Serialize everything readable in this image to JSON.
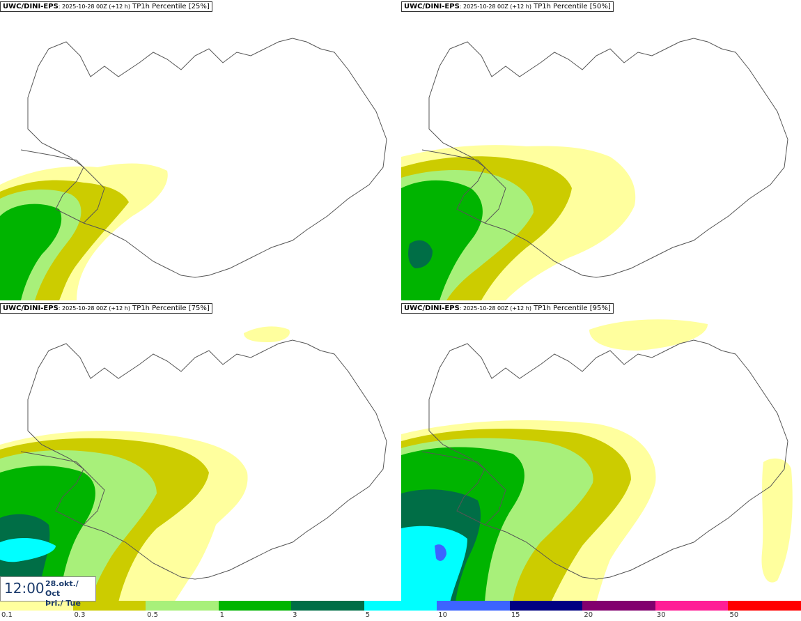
{
  "panels": [
    {
      "model": "UWC/DINI-EPS",
      "run": ": 2025-10-28 00Z (+12 h)",
      "field": " TP1h Percentile [25%]"
    },
    {
      "model": "UWC/DINI-EPS",
      "run": ": 2025-10-28 00Z (+12 h)",
      "field": " TP1h Percentile [50%]"
    },
    {
      "model": "UWC/DINI-EPS",
      "run": ": 2025-10-28 00Z (+12 h)",
      "field": " TP1h Percentile [75%]"
    },
    {
      "model": "UWC/DINI-EPS",
      "run": ": 2025-10-28 00Z (+12 h)",
      "field": " TP1h Percentile [95%]"
    }
  ],
  "valid_time": {
    "time": "12:00",
    "date_line1": "28.okt./ Oct",
    "date_line2": "Þri./ Tue"
  },
  "legend": {
    "colors": [
      "#ffff9e",
      "#cccc00",
      "#a8f07a",
      "#00b400",
      "#006e46",
      "#00ffff",
      "#3c64ff",
      "#000082",
      "#82006e",
      "#ff1e96",
      "#ff0000"
    ],
    "labels": [
      "0.1",
      "0.3",
      "0.5",
      "1",
      "3",
      "5",
      "10",
      "15",
      "20",
      "30",
      "50"
    ]
  }
}
